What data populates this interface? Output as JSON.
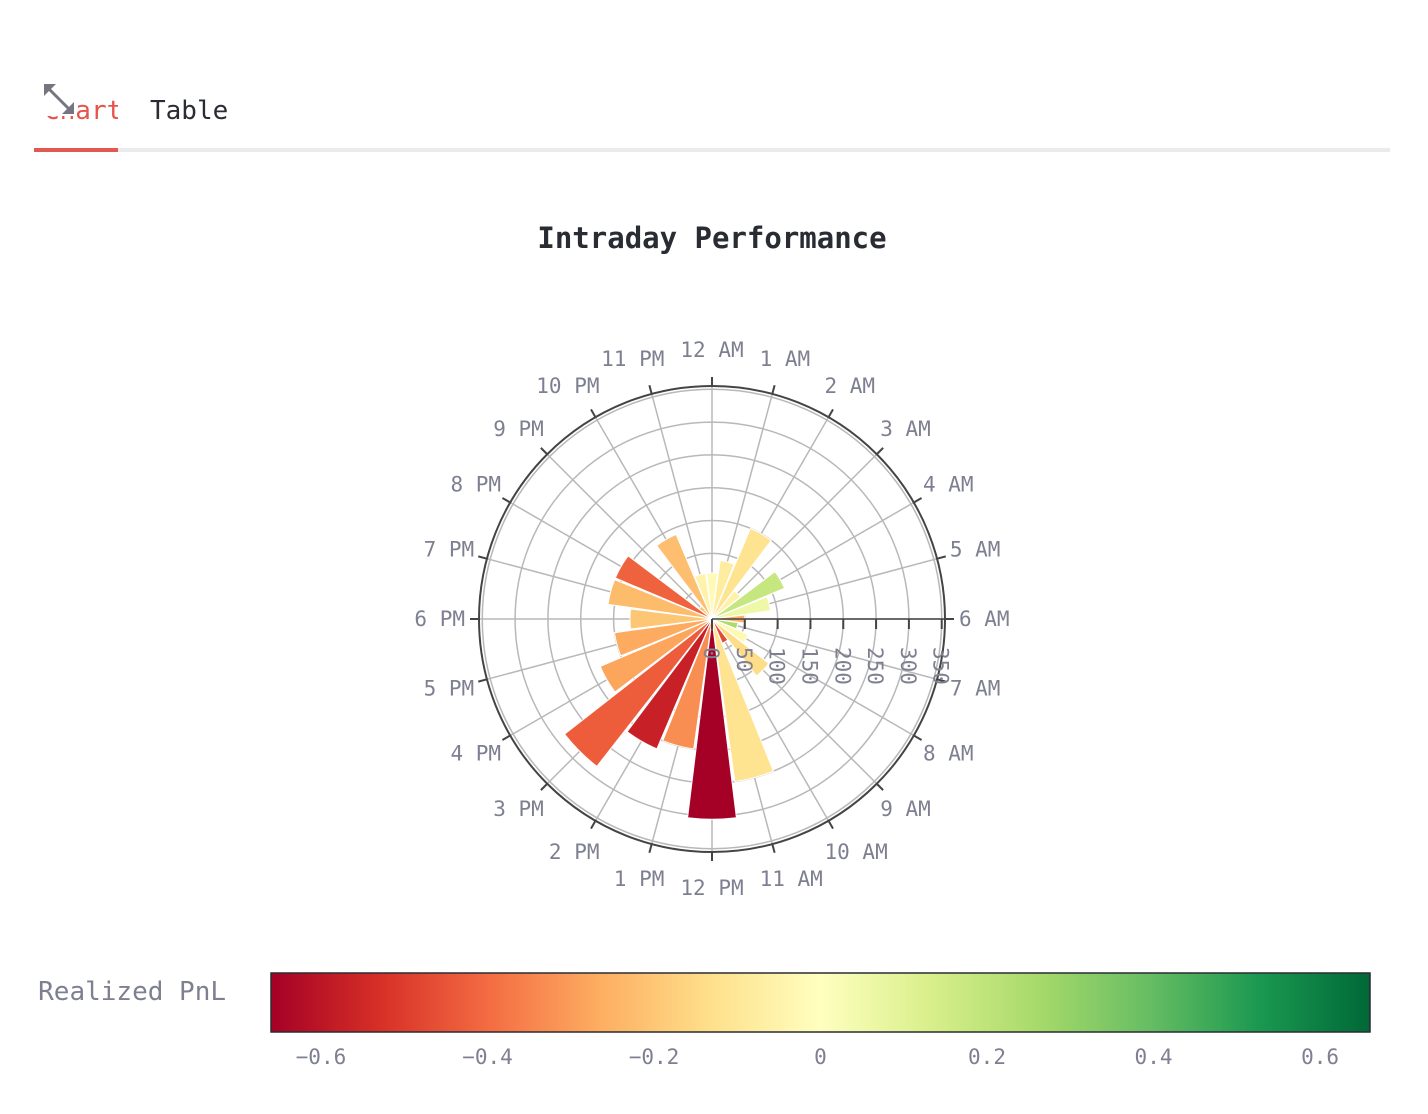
{
  "tabs": [
    {
      "label": "Chart",
      "active": true
    },
    {
      "label": "Table",
      "active": false
    }
  ],
  "expand_icon": "expand-arrows-icon",
  "accent_color": "#e05a52",
  "chart_data": {
    "type": "polar-bar",
    "title": "Intraday Performance",
    "angular_labels": [
      "12 AM",
      "1 AM",
      "2 AM",
      "3 AM",
      "4 AM",
      "5 AM",
      "6 AM",
      "7 AM",
      "8 AM",
      "9 AM",
      "10 AM",
      "11 AM",
      "12 PM",
      "1 PM",
      "2 PM",
      "3 PM",
      "4 PM",
      "5 PM",
      "6 PM",
      "7 PM",
      "8 PM",
      "9 PM",
      "10 PM",
      "11 PM"
    ],
    "radial_ticks": [
      "0",
      "50",
      "100",
      "150",
      "200",
      "250",
      "300",
      "350"
    ],
    "radial_range": [
      0,
      355
    ],
    "hours": [
      0,
      1,
      2,
      3,
      4,
      5,
      6,
      7,
      8,
      9,
      10,
      11,
      12,
      13,
      14,
      15,
      16,
      17,
      18,
      19,
      20,
      21,
      22,
      23
    ],
    "bar_count": [
      70,
      90,
      150,
      55,
      120,
      90,
      50,
      40,
      60,
      110,
      40,
      250,
      305,
      200,
      215,
      285,
      185,
      150,
      125,
      160,
      160,
      25,
      140,
      70
    ],
    "bar_realized_pnl": [
      -0.02,
      -0.08,
      -0.12,
      -0.06,
      0.18,
      0.06,
      -0.25,
      0.25,
      -0.03,
      -0.14,
      -0.47,
      -0.12,
      -0.66,
      -0.33,
      -0.57,
      -0.43,
      -0.28,
      -0.27,
      -0.2,
      -0.23,
      -0.42,
      -0.2,
      -0.22,
      -0.05
    ],
    "colorscale": [
      "#a50026",
      "#d73027",
      "#f46d43",
      "#fdae61",
      "#fee08b",
      "#ffffbf",
      "#d9ef8b",
      "#a6d96a",
      "#66bd63",
      "#1a9850",
      "#006837"
    ],
    "colorbar": {
      "title": "Realized PnL",
      "range": [
        -0.66,
        0.66
      ],
      "tick_values": [
        -0.6,
        -0.4,
        -0.2,
        0,
        0.2,
        0.4,
        0.6
      ],
      "tick_labels": [
        "−0.6",
        "−0.4",
        "−0.2",
        "0",
        "0.2",
        "0.4",
        "0.6"
      ]
    }
  }
}
